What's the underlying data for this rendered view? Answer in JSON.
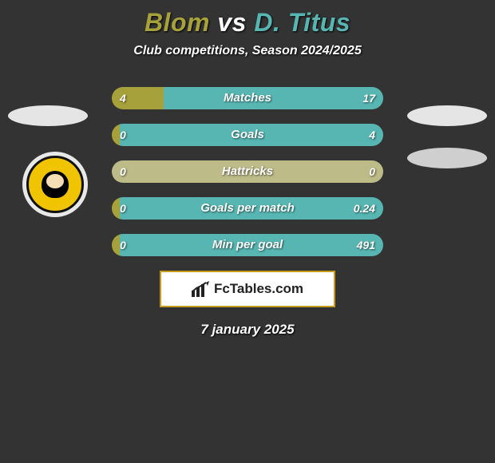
{
  "title": {
    "player1": "Blom",
    "vs": "vs",
    "player2": "D. Titus",
    "player1_color": "#a7a13b",
    "vs_color": "#ffffff",
    "player2_color": "#57b6b2"
  },
  "subtitle": "Club competitions, Season 2024/2025",
  "colors": {
    "left_bar": "#a7a13b",
    "right_bar": "#57b6b2",
    "neutral_bar": "#bdbb88",
    "brand_border": "#c59a1e"
  },
  "stats": [
    {
      "label": "Matches",
      "left_val": "4",
      "right_val": "17",
      "left_pct": 19,
      "left_color": "#a7a13b",
      "right_color": "#57b6b2"
    },
    {
      "label": "Goals",
      "left_val": "0",
      "right_val": "4",
      "left_pct": 3,
      "left_color": "#a7a13b",
      "right_color": "#57b6b2"
    },
    {
      "label": "Hattricks",
      "left_val": "0",
      "right_val": "0",
      "left_pct": 100,
      "left_color": "#bdbb88",
      "right_color": "#bdbb88"
    },
    {
      "label": "Goals per match",
      "left_val": "0",
      "right_val": "0.24",
      "left_pct": 3,
      "left_color": "#a7a13b",
      "right_color": "#57b6b2"
    },
    {
      "label": "Min per goal",
      "left_val": "0",
      "right_val": "491",
      "left_pct": 3,
      "left_color": "#a7a13b",
      "right_color": "#57b6b2"
    }
  ],
  "brand": {
    "text": "FcTables.com"
  },
  "date": "7 january 2025",
  "club_logo": {
    "name": "Kaizer Chiefs",
    "bg": "#f0c400"
  }
}
